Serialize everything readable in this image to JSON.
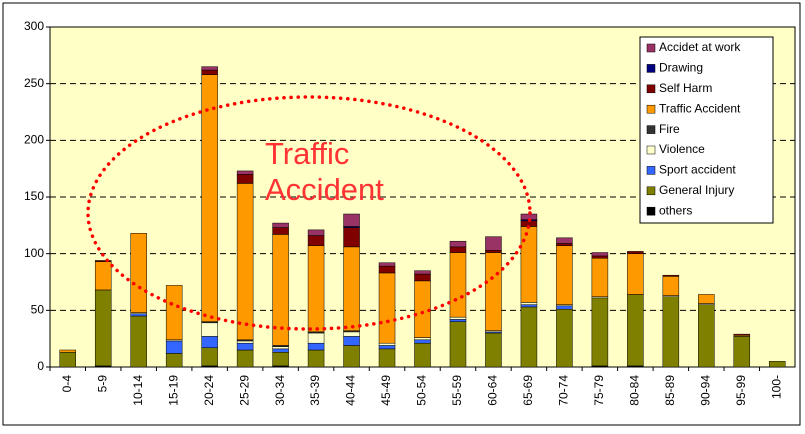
{
  "chart_data": {
    "type": "stacked_bar",
    "annotation": "Traffic Accident",
    "categories": [
      "0-4",
      "5-9",
      "10-14",
      "15-19",
      "20-24",
      "25-29",
      "30-34",
      "35-39",
      "40-44",
      "45-49",
      "50-54",
      "55-59",
      "60-64",
      "65-69",
      "70-74",
      "75-79",
      "80-84",
      "85-89",
      "90-94",
      "95-99",
      "100-"
    ],
    "series": [
      {
        "name": "others",
        "color": "#000000",
        "values": [
          0,
          1,
          0,
          0,
          1,
          0,
          1,
          0,
          0,
          0,
          0,
          0,
          0,
          0,
          0,
          1,
          1,
          0,
          0,
          0,
          0
        ]
      },
      {
        "name": "General Injury",
        "color": "#808000",
        "values": [
          13,
          67,
          45,
          12,
          16,
          15,
          12,
          15,
          19,
          16,
          21,
          40,
          30,
          53,
          51,
          60,
          63,
          62,
          55,
          27,
          5
        ]
      },
      {
        "name": "Sport accident",
        "color": "#3366ff",
        "values": [
          0,
          0,
          2,
          11,
          10,
          6,
          3,
          6,
          8,
          3,
          3,
          2,
          1,
          2,
          3,
          0,
          0,
          0,
          0,
          0,
          0
        ]
      },
      {
        "name": "Violence",
        "color": "#ffffcc",
        "values": [
          0,
          0,
          1,
          1,
          12,
          2,
          2,
          9,
          4,
          2,
          2,
          2,
          1,
          2,
          1,
          1,
          0,
          1,
          1,
          0,
          0
        ]
      },
      {
        "name": "Fire",
        "color": "#333333",
        "values": [
          0,
          0,
          0,
          0,
          1,
          1,
          1,
          1,
          1,
          0,
          0,
          0,
          0,
          0,
          0,
          0,
          0,
          0,
          0,
          0,
          0
        ]
      },
      {
        "name": "Traffic Accident",
        "color": "#ff9900",
        "values": [
          2,
          25,
          70,
          48,
          218,
          138,
          98,
          76,
          74,
          62,
          50,
          57,
          69,
          67,
          52,
          34,
          36,
          17,
          8,
          1,
          0
        ]
      },
      {
        "name": "Self Harm",
        "color": "#800000",
        "values": [
          0,
          1,
          0,
          0,
          4,
          8,
          6,
          9,
          17,
          6,
          6,
          5,
          2,
          5,
          2,
          2,
          2,
          1,
          0,
          1,
          0
        ]
      },
      {
        "name": "Drawing",
        "color": "#000080",
        "values": [
          0,
          0,
          0,
          0,
          0,
          0,
          0,
          0,
          1,
          0,
          0,
          0,
          0,
          1,
          0,
          0,
          0,
          0,
          0,
          0,
          0
        ]
      },
      {
        "name": "Accidet at work",
        "color": "#993366",
        "values": [
          0,
          0,
          0,
          0,
          3,
          3,
          4,
          5,
          11,
          3,
          3,
          5,
          12,
          5,
          5,
          3,
          0,
          0,
          0,
          0,
          0
        ]
      }
    ],
    "ylim": [
      0,
      300
    ],
    "yticks": [
      0,
      50,
      100,
      150,
      200,
      250,
      300
    ],
    "grid": true,
    "legend": "top-right"
  }
}
